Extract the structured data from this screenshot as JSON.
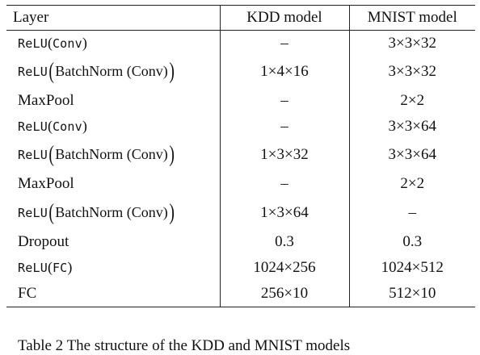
{
  "table": {
    "headers": [
      "Layer",
      "KDD model",
      "MNIST model"
    ],
    "rows": [
      {
        "layer": {
          "fn": "ReLU",
          "inner": "Conv",
          "batchnorm": false
        },
        "kdd": "–",
        "mnist": "3×3×32"
      },
      {
        "layer": {
          "fn": "ReLU",
          "inner": "BatchNorm",
          "arg": "Conv",
          "batchnorm": true
        },
        "kdd": "1×4×16",
        "mnist": "3×3×32"
      },
      {
        "layer": {
          "text": "MaxPool"
        },
        "kdd": "–",
        "mnist": "2×2"
      },
      {
        "layer": {
          "fn": "ReLU",
          "inner": "Conv",
          "batchnorm": false
        },
        "kdd": "–",
        "mnist": "3×3×64"
      },
      {
        "layer": {
          "fn": "ReLU",
          "inner": "BatchNorm",
          "arg": "Conv",
          "batchnorm": true
        },
        "kdd": "1×3×32",
        "mnist": "3×3×64"
      },
      {
        "layer": {
          "text": "MaxPool"
        },
        "kdd": "–",
        "mnist": "2×2"
      },
      {
        "layer": {
          "fn": "ReLU",
          "inner": "BatchNorm",
          "arg": "Conv",
          "batchnorm": true
        },
        "kdd": "1×3×64",
        "mnist": "–"
      },
      {
        "layer": {
          "text": "Dropout"
        },
        "kdd": "0.3",
        "mnist": "0.3"
      },
      {
        "layer": {
          "fn": "ReLU",
          "inner": "FC",
          "batchnorm": false
        },
        "kdd": "1024×256",
        "mnist": "1024×512"
      },
      {
        "layer": {
          "text": "FC"
        },
        "kdd": "256×10",
        "mnist": "512×10"
      }
    ]
  },
  "caption": "Table 2    The structure of the KDD and MNIST models"
}
